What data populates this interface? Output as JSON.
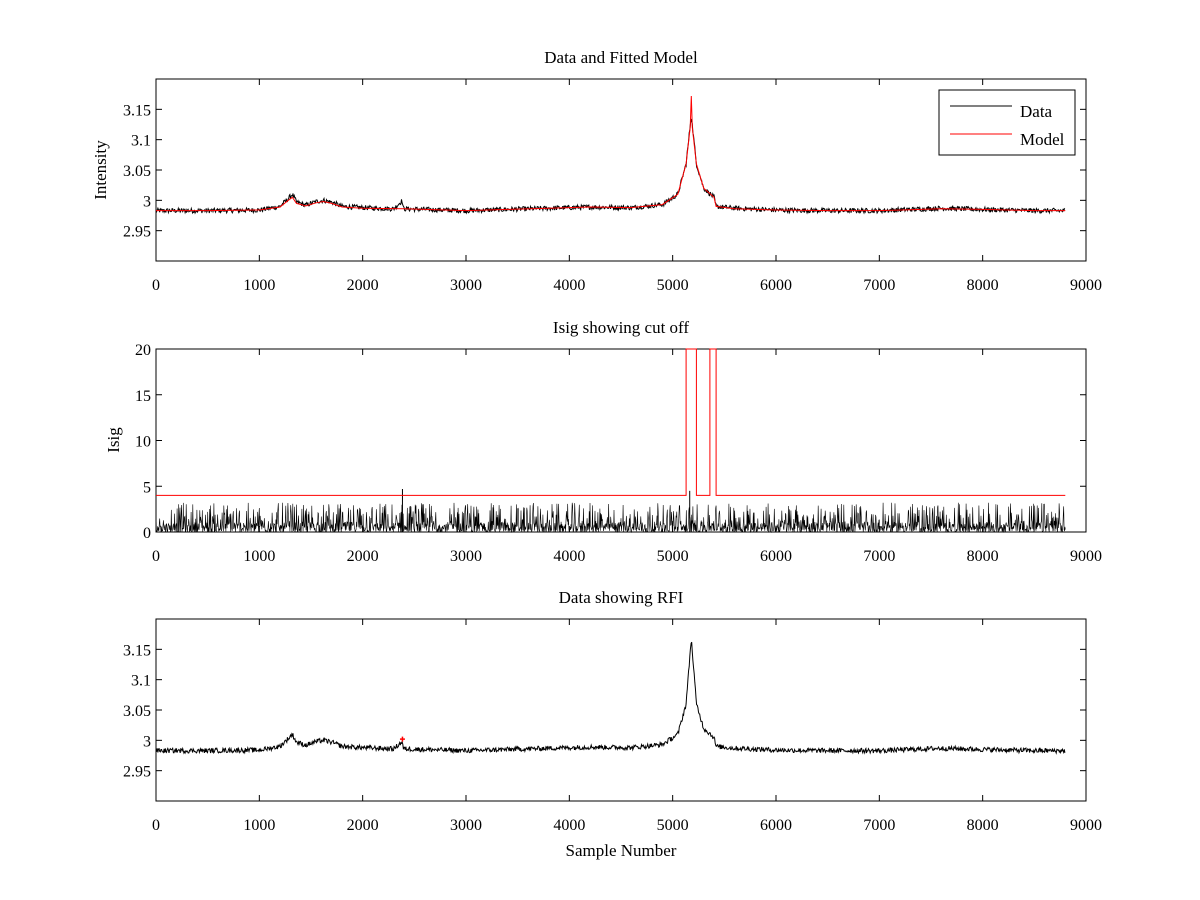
{
  "colors": {
    "data": "#000000",
    "model": "#ff0000",
    "axes": "#000000",
    "background": "#ffffff"
  },
  "chart_data": [
    {
      "type": "line",
      "title": "Data and Fitted Model",
      "xlabel": "",
      "ylabel": "Intensity",
      "xlim": [
        0,
        9000
      ],
      "ylim": [
        2.9,
        3.2
      ],
      "xticks": [
        0,
        1000,
        2000,
        3000,
        4000,
        5000,
        6000,
        7000,
        8000,
        9000
      ],
      "xtick_labels": [
        "0",
        "1000",
        "2000",
        "3000",
        "4000",
        "5000",
        "6000",
        "7000",
        "8000",
        "9000"
      ],
      "yticks": [
        2.95,
        3.0,
        3.05,
        3.1,
        3.15
      ],
      "ytick_labels": [
        "2.95",
        "3",
        "3.05",
        "3.1",
        "3.15"
      ],
      "legend": {
        "position": "top-right",
        "entries": [
          "Data",
          "Model"
        ]
      },
      "series": [
        {
          "name": "Data",
          "color": "#000000",
          "noise": 0.004,
          "x": [
            0,
            500,
            1000,
            1200,
            1280,
            1320,
            1360,
            1450,
            1550,
            1620,
            1700,
            1800,
            2000,
            2300,
            2385,
            2390,
            2400,
            2600,
            3000,
            3400,
            3800,
            4200,
            4600,
            4900,
            5050,
            5130,
            5180,
            5230,
            5300,
            5400,
            5420,
            5600,
            6000,
            6500,
            7000,
            7600,
            8000,
            8500,
            8800
          ],
          "y": [
            2.983,
            2.983,
            2.984,
            2.99,
            3.003,
            3.01,
            2.997,
            2.992,
            2.998,
            3.0,
            2.997,
            2.99,
            2.988,
            2.986,
            3.0,
            2.987,
            2.986,
            2.985,
            2.983,
            2.985,
            2.987,
            2.989,
            2.988,
            2.993,
            3.01,
            3.06,
            3.14,
            3.06,
            3.02,
            3.005,
            2.99,
            2.987,
            2.984,
            2.983,
            2.983,
            2.987,
            2.985,
            2.983,
            2.983
          ]
        },
        {
          "name": "Model",
          "color": "#ff0000",
          "noise": 0,
          "x": [
            0,
            500,
            1000,
            1200,
            1280,
            1320,
            1360,
            1450,
            1550,
            1620,
            1700,
            1800,
            2000,
            2400,
            3000,
            3400,
            3800,
            4200,
            4600,
            4900,
            5050,
            5130,
            5170,
            5180,
            5190,
            5230,
            5300,
            5400,
            5420,
            5600,
            6000,
            6500,
            7000,
            7600,
            8000,
            8500,
            8800
          ],
          "y": [
            2.983,
            2.983,
            2.984,
            2.989,
            3.0,
            3.005,
            2.995,
            2.991,
            2.996,
            2.998,
            2.995,
            2.989,
            2.987,
            2.986,
            2.983,
            2.985,
            2.987,
            2.989,
            2.988,
            2.993,
            3.01,
            3.06,
            3.12,
            3.172,
            3.12,
            3.06,
            3.02,
            3.005,
            2.99,
            2.986,
            2.984,
            2.983,
            2.983,
            2.986,
            2.985,
            2.983,
            2.983
          ]
        }
      ]
    },
    {
      "type": "line",
      "title": "Isig showing cut off",
      "xlabel": "",
      "ylabel": "Isig",
      "xlim": [
        0,
        9000
      ],
      "ylim": [
        0,
        20
      ],
      "xticks": [
        0,
        1000,
        2000,
        3000,
        4000,
        5000,
        6000,
        7000,
        8000,
        9000
      ],
      "xtick_labels": [
        "0",
        "1000",
        "2000",
        "3000",
        "4000",
        "5000",
        "6000",
        "7000",
        "8000",
        "9000"
      ],
      "yticks": [
        0,
        5,
        10,
        15,
        20
      ],
      "ytick_labels": [
        "0",
        "5",
        "10",
        "15",
        "20"
      ],
      "series": [
        {
          "name": "Isig",
          "color": "#000000",
          "noise_max": 3.2,
          "x_range": [
            0,
            8800
          ],
          "spikes": [
            {
              "x": 2385,
              "y": 4.7
            },
            {
              "x": 5165,
              "y": 4.5
            }
          ]
        },
        {
          "name": "Cut off",
          "color": "#ff0000",
          "x": [
            0,
            5130,
            5130,
            5230,
            5230,
            5360,
            5360,
            5420,
            5420,
            8800
          ],
          "y": [
            4,
            4,
            20,
            20,
            4,
            4,
            20,
            20,
            4,
            4
          ]
        }
      ]
    },
    {
      "type": "line",
      "title": "Data showing RFI",
      "xlabel": "Sample Number",
      "ylabel": "",
      "xlim": [
        0,
        9000
      ],
      "ylim": [
        2.9,
        3.2
      ],
      "xticks": [
        0,
        1000,
        2000,
        3000,
        4000,
        5000,
        6000,
        7000,
        8000,
        9000
      ],
      "xtick_labels": [
        "0",
        "1000",
        "2000",
        "3000",
        "4000",
        "5000",
        "6000",
        "7000",
        "8000",
        "9000"
      ],
      "yticks": [
        2.95,
        3.0,
        3.05,
        3.1,
        3.15
      ],
      "ytick_labels": [
        "2.95",
        "3",
        "3.05",
        "3.1",
        "3.15"
      ],
      "series": [
        {
          "name": "Data",
          "color": "#000000",
          "noise": 0.004,
          "x": [
            0,
            500,
            1000,
            1200,
            1280,
            1320,
            1360,
            1450,
            1550,
            1620,
            1700,
            1800,
            2000,
            2300,
            2385,
            2390,
            2400,
            2600,
            3000,
            3400,
            3800,
            4200,
            4600,
            4900,
            5050,
            5130,
            5180,
            5230,
            5300,
            5400,
            5420,
            5600,
            6000,
            6500,
            7000,
            7600,
            8000,
            8500,
            8800
          ],
          "y": [
            2.983,
            2.983,
            2.984,
            2.99,
            3.003,
            3.01,
            2.997,
            2.992,
            2.998,
            3.0,
            2.997,
            2.99,
            2.988,
            2.986,
            2.998,
            2.987,
            2.986,
            2.985,
            2.983,
            2.985,
            2.987,
            2.989,
            2.988,
            2.993,
            3.01,
            3.06,
            3.168,
            3.06,
            3.02,
            3.005,
            2.99,
            2.987,
            2.984,
            2.983,
            2.983,
            2.987,
            2.985,
            2.983,
            2.983
          ]
        },
        {
          "name": "RFI",
          "color": "#ff0000",
          "markers": [
            {
              "x": 2385,
              "y": 3.002
            }
          ]
        }
      ]
    }
  ]
}
